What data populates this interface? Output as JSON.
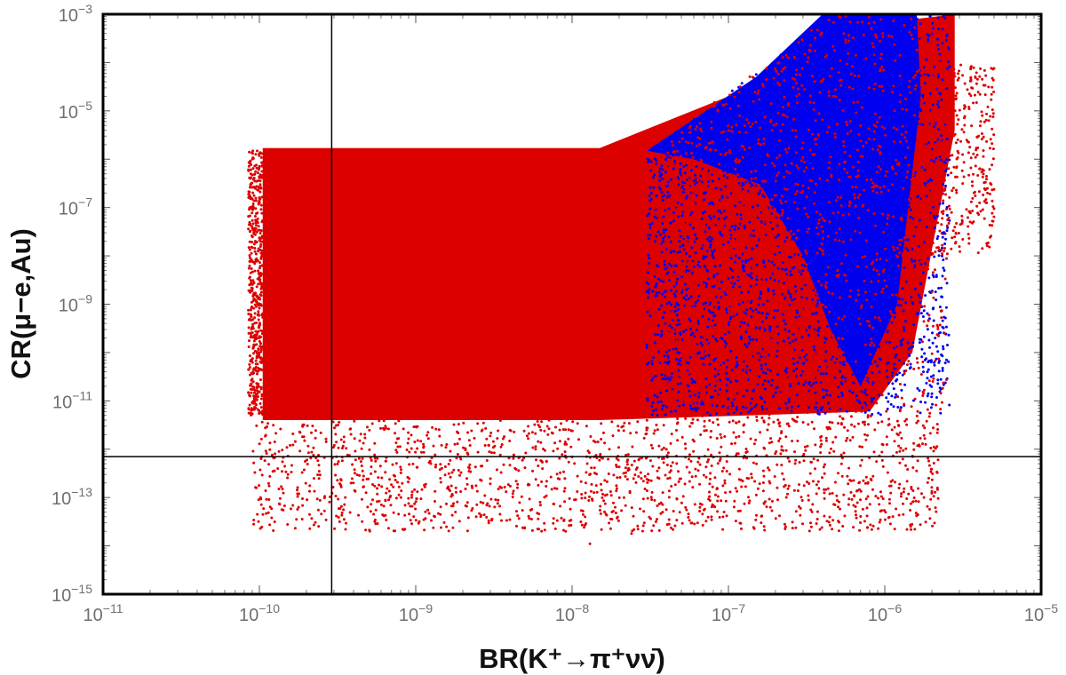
{
  "chart_data": {
    "type": "scatter",
    "xscale": "log",
    "yscale": "log",
    "xlim": [
      1e-11,
      1e-05
    ],
    "ylim": [
      1e-15,
      0.001
    ],
    "xlabel": "BR(K⁺→π⁺νν̄)",
    "ylabel": "CR(μ−e,Au)",
    "x_ticks": [
      {
        "base": "10",
        "exp": "−11"
      },
      {
        "base": "10",
        "exp": "−10"
      },
      {
        "base": "10",
        "exp": "−9"
      },
      {
        "base": "10",
        "exp": "−8"
      },
      {
        "base": "10",
        "exp": "−7"
      },
      {
        "base": "10",
        "exp": "−6"
      },
      {
        "base": "10",
        "exp": "−5"
      }
    ],
    "y_ticks": [
      {
        "base": "10",
        "exp": "−15"
      },
      {
        "base": "10",
        "exp": "−13"
      },
      {
        "base": "10",
        "exp": "−11"
      },
      {
        "base": "10",
        "exp": "−9"
      },
      {
        "base": "10",
        "exp": "−7"
      },
      {
        "base": "10",
        "exp": "−5"
      },
      {
        "base": "10",
        "exp": "−3"
      }
    ],
    "reference_lines": {
      "vertical_x": 2.9e-10,
      "horizontal_y": 7e-13
    },
    "series": [
      {
        "color": "#dd0000",
        "regions": [
          {
            "xrange": [
              1e-10,
              1.5e-08
            ],
            "yrange": [
              3e-12,
              1.7e-06
            ],
            "density": 1.0
          },
          {
            "xrange": [
              1.5e-08,
              2.5e-06
            ],
            "yrange": [
              5e-12,
              0.001
            ],
            "density": 0.6
          },
          {
            "xrange": [
              1e-10,
              2e-06
            ],
            "yrange": [
              2e-14,
              3e-12
            ],
            "density": 0.25
          }
        ]
      },
      {
        "color": "#0000ee",
        "regions": [
          {
            "xrange": [
              3e-08,
              1.8e-06
            ],
            "yrange": [
              5e-12,
              0.001
            ],
            "density": 0.8
          }
        ]
      }
    ]
  }
}
